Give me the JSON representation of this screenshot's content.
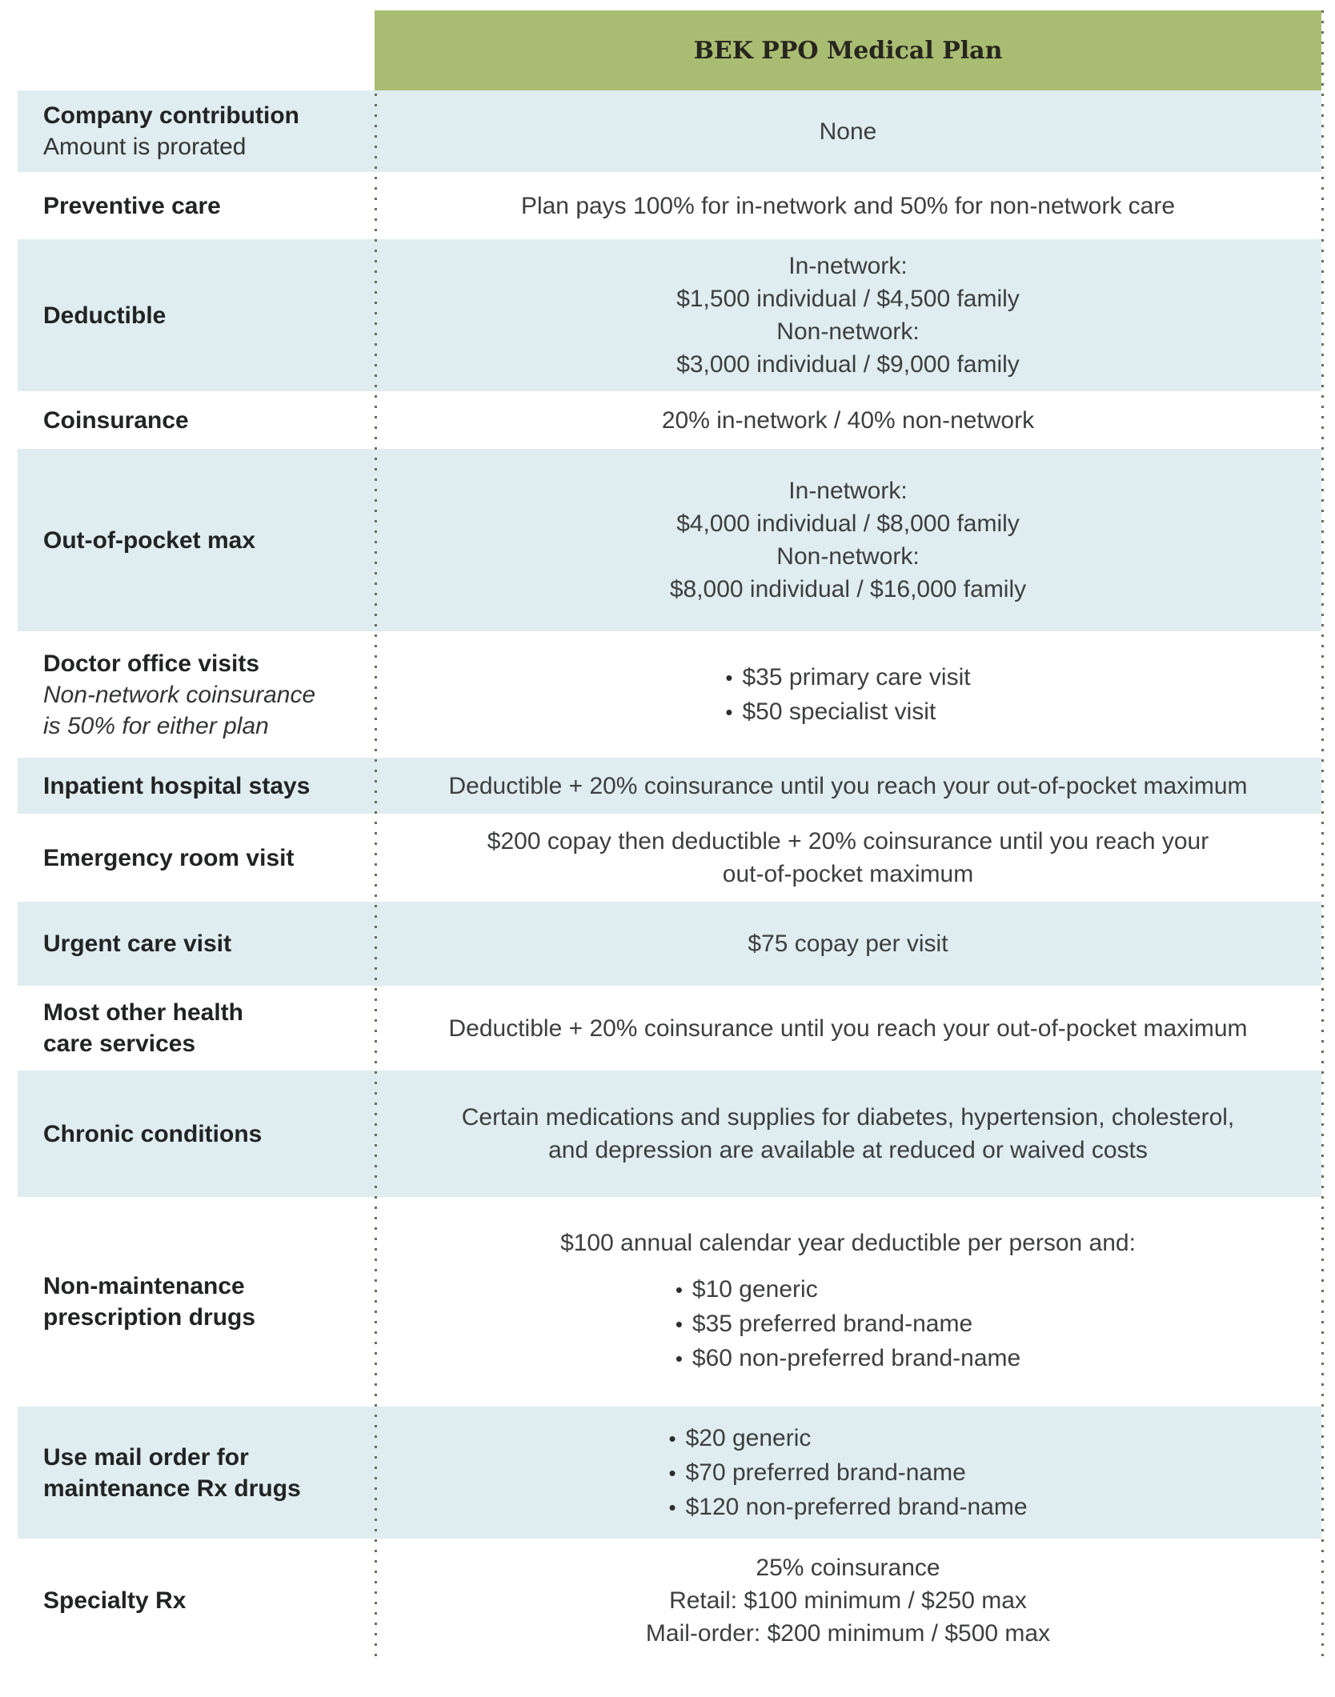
{
  "header": {
    "title": "BEK PPO Medical Plan"
  },
  "rows": [
    {
      "id": "company-contribution",
      "label_lines": [
        "Company contribution"
      ],
      "note_lines": [
        "Amount is prorated"
      ],
      "note_italic": false,
      "lines": [
        "None"
      ],
      "bullets": []
    },
    {
      "id": "preventive-care",
      "label_lines": [
        "Preventive care"
      ],
      "note_lines": [],
      "note_italic": false,
      "lines": [
        "Plan pays 100% for in-network and 50% for non-network care"
      ],
      "bullets": []
    },
    {
      "id": "deductible",
      "label_lines": [
        "Deductible"
      ],
      "note_lines": [],
      "note_italic": false,
      "lines": [
        "In-network:",
        "$1,500 individual / $4,500 family",
        "Non-network:",
        "$3,000 individual / $9,000 family"
      ],
      "bullets": []
    },
    {
      "id": "coinsurance",
      "label_lines": [
        "Coinsurance"
      ],
      "note_lines": [],
      "note_italic": false,
      "lines": [
        "20% in-network / 40% non-network"
      ],
      "bullets": []
    },
    {
      "id": "out-of-pocket-max",
      "label_lines": [
        "Out-of-pocket max"
      ],
      "note_lines": [],
      "note_italic": false,
      "lines": [
        "In-network:",
        "$4,000 individual / $8,000 family",
        "Non-network:",
        "$8,000 individual / $16,000 family"
      ],
      "bullets": []
    },
    {
      "id": "doctor-office-visits",
      "label_lines": [
        "Doctor office visits"
      ],
      "note_lines": [
        "Non-network coinsurance",
        "is 50% for either plan"
      ],
      "note_italic": true,
      "lines": [],
      "bullets": [
        "$35 primary care visit",
        "$50 specialist visit"
      ]
    },
    {
      "id": "inpatient-hospital-stays",
      "label_lines": [
        "Inpatient hospital stays"
      ],
      "note_lines": [],
      "note_italic": false,
      "lines": [
        "Deductible + 20% coinsurance until you reach your out-of-pocket maximum"
      ],
      "bullets": []
    },
    {
      "id": "emergency-room-visit",
      "label_lines": [
        "Emergency room visit"
      ],
      "note_lines": [],
      "note_italic": false,
      "lines": [
        "$200 copay then deductible + 20% coinsurance until you reach your",
        "out-of-pocket maximum"
      ],
      "bullets": []
    },
    {
      "id": "urgent-care-visit",
      "label_lines": [
        "Urgent care visit"
      ],
      "note_lines": [],
      "note_italic": false,
      "lines": [
        "$75 copay per visit"
      ],
      "bullets": []
    },
    {
      "id": "most-other-health-care-services",
      "label_lines": [
        "Most other health",
        "care services"
      ],
      "note_lines": [],
      "note_italic": false,
      "lines": [
        "Deductible + 20% coinsurance until you reach your out-of-pocket maximum"
      ],
      "bullets": []
    },
    {
      "id": "chronic-conditions",
      "label_lines": [
        "Chronic conditions"
      ],
      "note_lines": [],
      "note_italic": false,
      "lines": [
        "Certain medications and supplies for diabetes, hypertension, cholesterol,",
        "and depression are available at reduced or waived costs"
      ],
      "bullets": []
    },
    {
      "id": "non-maintenance-prescription-drugs",
      "label_lines": [
        "Non-maintenance",
        "prescription drugs"
      ],
      "note_lines": [],
      "note_italic": false,
      "lines": [
        "$100 annual calendar year deductible per person and:"
      ],
      "bullets": [
        "$10 generic",
        "$35 preferred brand-name",
        "$60 non-preferred brand-name"
      ]
    },
    {
      "id": "use-mail-order-for-maintenance-rx-drugs",
      "label_lines": [
        "Use mail order for",
        "maintenance Rx drugs"
      ],
      "note_lines": [],
      "note_italic": false,
      "lines": [],
      "bullets": [
        "$20 generic",
        "$70 preferred brand-name",
        "$120 non-preferred brand-name"
      ]
    },
    {
      "id": "specialty-rx",
      "label_lines": [
        "Specialty Rx"
      ],
      "note_lines": [],
      "note_italic": false,
      "lines": [
        "25% coinsurance",
        "Retail: $100 minimum / $250 max",
        "Mail-order: $200 minimum / $500 max"
      ],
      "bullets": []
    }
  ]
}
